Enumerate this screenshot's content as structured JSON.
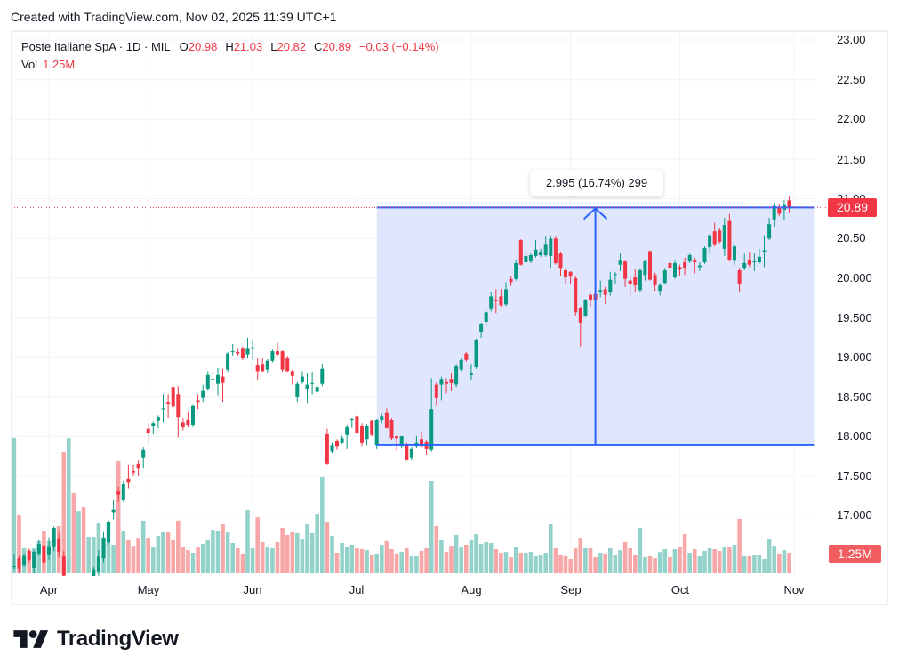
{
  "header": {
    "caption": "Created with TradingView.com, Nov 02, 2025 11:39 UTC+1"
  },
  "legend": {
    "symbol": "Poste Italiane SpA · 1D · MIL",
    "open_label": "O",
    "open": "20.98",
    "high_label": "H",
    "high": "21.03",
    "low_label": "L",
    "low": "20.82",
    "close_label": "C",
    "close": "20.89",
    "change": "−0.03 (−0.14%)",
    "vol_label": "Vol",
    "vol": "1.25M"
  },
  "price_axis": {
    "labels": [
      "23.00",
      "22.50",
      "22.00",
      "21.50",
      "21.00",
      "20.50",
      "20.000",
      "19.500",
      "19.000",
      "18.500",
      "18.000",
      "17.500",
      "17.000"
    ],
    "last_price_badge": "20.89",
    "volume_badge": "1.25M"
  },
  "time_axis": {
    "labels": [
      "Apr",
      "May",
      "Jun",
      "Jul",
      "Aug",
      "Sep",
      "Oct",
      "Nov"
    ]
  },
  "measure": {
    "label": "2.995 (16.74%) 299"
  },
  "footer": {
    "brand": "TradingView"
  },
  "colors": {
    "up": "#089981",
    "down": "#f23645",
    "vol_up": "#93d2cb",
    "vol_down": "#f7a7a7",
    "grid": "#f0f3fa",
    "range_fill": "#dfe6fd",
    "range_line": "#2962ff",
    "price_badge": "#f23645",
    "volume_badge": "#f05c5f"
  },
  "chart_data": {
    "type": "bar",
    "subtype": "candlestick",
    "title": "Poste Italiane SpA · 1D · MIL",
    "xlabel": "",
    "ylabel": "",
    "ylim": [
      16.25,
      23.1
    ],
    "grid": true,
    "legend_position": "top-left",
    "y_ticks": [
      23.0,
      22.5,
      22.0,
      21.5,
      21.0,
      20.5,
      20.0,
      19.5,
      19.0,
      18.5,
      18.0,
      17.5,
      17.0,
      16.5
    ],
    "x_ticks": [
      {
        "label": "Apr",
        "index": 0
      },
      {
        "label": "May",
        "index": 20
      },
      {
        "label": "Jun",
        "index": 41
      },
      {
        "label": "Jul",
        "index": 62
      },
      {
        "label": "Aug",
        "index": 85
      },
      {
        "label": "Sep",
        "index": 105
      },
      {
        "label": "Oct",
        "index": 127
      },
      {
        "label": "Nov",
        "index": 150
      }
    ],
    "last_price": 20.89,
    "last_volume_m": 1.25,
    "annotations": {
      "price_range": {
        "label": "2.995 (16.74%) 299",
        "price_low": 17.895,
        "price_high": 20.89,
        "from_index": 66,
        "to_index": 154,
        "arrow_index": 110
      }
    },
    "ohlcv_fields": [
      "open",
      "high",
      "low",
      "close",
      "volume_millions"
    ],
    "start_index": -7,
    "ohlcv": [
      [
        16.36,
        16.53,
        16.33,
        16.37,
        8.26
      ],
      [
        16.47,
        16.51,
        16.28,
        16.34,
        3.59
      ],
      [
        16.38,
        16.53,
        16.36,
        16.51,
        1.52
      ],
      [
        16.56,
        16.59,
        16.42,
        16.45,
        1.41
      ],
      [
        16.35,
        16.57,
        16.28,
        16.55,
        1.52
      ],
      [
        16.53,
        16.71,
        16.51,
        16.65,
        1.96
      ],
      [
        16.63,
        16.66,
        16.29,
        16.42,
        2.61
      ],
      [
        16.52,
        16.73,
        16.45,
        16.62,
        1.96
      ],
      [
        16.62,
        16.87,
        16.56,
        16.85,
        2.77
      ],
      [
        16.72,
        16.79,
        16.48,
        16.55,
        2.88
      ],
      [
        16.49,
        16.56,
        16.17,
        16.25,
        7.39
      ],
      [
        15.3,
        15.9,
        14.8,
        15.7,
        8.26
      ],
      [
        15.8,
        16.0,
        15.2,
        15.4,
        4.89
      ],
      [
        15.3,
        16.1,
        15.1,
        15.9,
        3.8
      ],
      [
        16.1,
        16.2,
        15.6,
        15.8,
        4.08
      ],
      [
        15.8,
        16.2,
        15.7,
        16.1,
        2.23
      ],
      [
        16.05,
        16.36,
        16.0,
        16.33,
        2.23
      ],
      [
        16.31,
        16.57,
        16.25,
        16.49,
        3.1
      ],
      [
        16.47,
        16.81,
        16.42,
        16.73,
        2.17
      ],
      [
        16.67,
        16.95,
        16.65,
        16.93,
        3.15
      ],
      [
        17.05,
        17.21,
        16.96,
        17.08,
        1.74
      ],
      [
        17.32,
        17.37,
        17.18,
        17.27,
        6.85
      ],
      [
        17.21,
        17.45,
        17.18,
        17.41,
        2.61
      ],
      [
        17.47,
        17.65,
        17.35,
        17.43,
        2.07
      ],
      [
        17.57,
        17.65,
        17.51,
        17.55,
        1.68
      ],
      [
        17.66,
        17.7,
        17.51,
        17.6,
        2.17
      ],
      [
        17.74,
        17.87,
        17.6,
        17.84,
        3.21
      ],
      [
        18.1,
        18.17,
        17.9,
        18.05,
        2.17
      ],
      [
        18.14,
        18.19,
        18.04,
        18.17,
        1.63
      ],
      [
        18.2,
        18.27,
        18.11,
        18.25,
        2.28
      ],
      [
        18.35,
        18.54,
        18.18,
        18.36,
        2.55
      ],
      [
        18.44,
        18.54,
        18.24,
        18.42,
        2.55
      ],
      [
        18.63,
        18.64,
        18.35,
        18.38,
        2.01
      ],
      [
        18.54,
        18.64,
        17.99,
        18.25,
        3.21
      ],
      [
        18.18,
        18.24,
        18.08,
        18.13,
        1.63
      ],
      [
        18.22,
        18.32,
        18.13,
        18.15,
        1.41
      ],
      [
        18.15,
        18.4,
        18.13,
        18.39,
        1.25
      ],
      [
        18.46,
        18.54,
        18.35,
        18.44,
        1.63
      ],
      [
        18.49,
        18.66,
        18.44,
        18.58,
        1.79
      ],
      [
        18.6,
        18.83,
        18.58,
        18.78,
        2.07
      ],
      [
        18.72,
        18.83,
        18.58,
        18.73,
        2.66
      ],
      [
        18.67,
        18.87,
        18.53,
        18.78,
        2.61
      ],
      [
        18.76,
        18.86,
        18.44,
        18.68,
        2.99
      ],
      [
        18.85,
        19.07,
        18.81,
        19.05,
        2.55
      ],
      [
        19.07,
        19.17,
        19.02,
        19.08,
        1.85
      ],
      [
        19.07,
        19.11,
        19.02,
        19.05,
        1.52
      ],
      [
        19.11,
        19.14,
        18.97,
        18.99,
        1.2
      ],
      [
        19.04,
        19.25,
        18.99,
        19.11,
        3.86
      ],
      [
        19.11,
        19.23,
        18.97,
        19.13,
        1.58
      ],
      [
        18.9,
        18.99,
        18.72,
        18.83,
        3.42
      ],
      [
        18.91,
        18.99,
        18.81,
        18.83,
        1.9
      ],
      [
        18.85,
        18.98,
        18.8,
        18.96,
        1.63
      ],
      [
        18.96,
        19.1,
        18.94,
        19.08,
        1.58
      ],
      [
        19.08,
        19.19,
        19.02,
        19.04,
        1.9
      ],
      [
        19.08,
        19.09,
        18.82,
        18.85,
        2.77
      ],
      [
        18.99,
        19.01,
        18.81,
        18.83,
        2.34
      ],
      [
        18.83,
        18.85,
        18.66,
        18.77,
        2.55
      ],
      [
        18.5,
        18.69,
        18.44,
        18.67,
        2.45
      ],
      [
        18.69,
        18.83,
        18.67,
        18.76,
        2.12
      ],
      [
        18.6,
        18.8,
        18.43,
        18.66,
        2.99
      ],
      [
        18.67,
        18.82,
        18.54,
        18.68,
        2.45
      ],
      [
        18.57,
        18.66,
        18.56,
        18.63,
        3.64
      ],
      [
        18.67,
        18.92,
        18.64,
        18.86,
        5.87
      ],
      [
        18.04,
        18.1,
        17.65,
        17.66,
        3.15
      ],
      [
        17.82,
        17.93,
        17.79,
        17.89,
        2.28
      ],
      [
        17.95,
        17.97,
        17.84,
        17.88,
        1.25
      ],
      [
        17.93,
        18.02,
        17.92,
        17.98,
        1.85
      ],
      [
        18.03,
        18.15,
        17.85,
        18.13,
        1.63
      ],
      [
        18.22,
        18.24,
        18.12,
        18.23,
        1.74
      ],
      [
        18.26,
        18.34,
        18.03,
        18.05,
        1.58
      ],
      [
        18.14,
        18.17,
        17.88,
        17.93,
        1.47
      ],
      [
        17.97,
        18.16,
        17.89,
        18.14,
        1.41
      ],
      [
        18.2,
        18.22,
        18.01,
        18.03,
        1.14
      ],
      [
        17.89,
        18.23,
        17.85,
        18.21,
        1.2
      ],
      [
        18.21,
        18.29,
        18.17,
        18.26,
        1.74
      ],
      [
        18.3,
        18.36,
        18.1,
        18.12,
        1.96
      ],
      [
        18.22,
        18.24,
        17.96,
        17.98,
        1.47
      ],
      [
        18.01,
        18.02,
        17.83,
        17.98,
        1.2
      ],
      [
        17.88,
        18.02,
        17.86,
        18.01,
        1.3
      ],
      [
        17.89,
        17.93,
        17.7,
        17.71,
        1.58
      ],
      [
        17.74,
        17.87,
        17.71,
        17.85,
        1.09
      ],
      [
        17.88,
        18.02,
        17.86,
        17.93,
        1.09
      ],
      [
        17.97,
        18.06,
        17.87,
        17.88,
        1.36
      ],
      [
        17.94,
        17.96,
        17.77,
        17.85,
        1.58
      ],
      [
        17.84,
        18.74,
        17.82,
        18.35,
        5.65
      ],
      [
        18.66,
        18.69,
        18.39,
        18.49,
        2.88
      ],
      [
        18.66,
        18.76,
        18.46,
        18.73,
        2.07
      ],
      [
        18.69,
        18.74,
        18.55,
        18.67,
        1.3
      ],
      [
        18.73,
        18.8,
        18.58,
        18.68,
        1.68
      ],
      [
        18.66,
        18.91,
        18.63,
        18.89,
        2.34
      ],
      [
        18.85,
        18.99,
        18.83,
        18.97,
        1.63
      ],
      [
        19.05,
        19.07,
        18.95,
        18.97,
        1.74
      ],
      [
        18.78,
        18.91,
        18.71,
        18.8,
        2.07
      ],
      [
        18.88,
        19.24,
        18.86,
        19.22,
        2.39
      ],
      [
        19.32,
        19.44,
        19.25,
        19.42,
        1.79
      ],
      [
        19.45,
        19.6,
        19.39,
        19.57,
        1.9
      ],
      [
        19.61,
        19.83,
        19.58,
        19.77,
        1.85
      ],
      [
        19.73,
        19.86,
        19.56,
        19.71,
        1.47
      ],
      [
        19.77,
        19.86,
        19.64,
        19.66,
        1.25
      ],
      [
        19.67,
        19.95,
        19.65,
        19.86,
        1.3
      ],
      [
        19.99,
        20.03,
        19.9,
        19.95,
        0.98
      ],
      [
        19.99,
        20.23,
        19.97,
        20.19,
        1.63
      ],
      [
        20.48,
        20.49,
        20.16,
        20.17,
        1.25
      ],
      [
        20.2,
        20.35,
        20.18,
        20.28,
        1.25
      ],
      [
        20.21,
        20.31,
        20.19,
        20.29,
        1.3
      ],
      [
        20.28,
        20.48,
        20.26,
        20.36,
        1.03
      ],
      [
        20.29,
        20.37,
        20.27,
        20.33,
        1.14
      ],
      [
        20.29,
        20.53,
        20.27,
        20.42,
        1.25
      ],
      [
        20.28,
        20.54,
        20.12,
        20.5,
        2.99
      ],
      [
        20.5,
        20.53,
        20.17,
        20.19,
        1.52
      ],
      [
        20.31,
        20.33,
        20.03,
        20.12,
        1.14
      ],
      [
        20.1,
        20.12,
        19.92,
        20.01,
        1.09
      ],
      [
        20.08,
        20.09,
        19.92,
        20.02,
        0.87
      ],
      [
        20.0,
        20.02,
        19.53,
        19.57,
        1.58
      ],
      [
        19.62,
        19.64,
        19.14,
        19.44,
        2.17
      ],
      [
        19.52,
        19.74,
        19.51,
        19.73,
        1.58
      ],
      [
        19.79,
        19.81,
        19.64,
        19.72,
        1.52
      ],
      [
        19.8,
        19.82,
        19.61,
        19.73,
        0.98
      ],
      [
        19.82,
        19.97,
        19.76,
        19.85,
        1.25
      ],
      [
        19.86,
        19.89,
        19.67,
        19.79,
        1.2
      ],
      [
        19.82,
        20.08,
        19.78,
        19.98,
        1.58
      ],
      [
        20.04,
        20.08,
        19.92,
        20.05,
        1.14
      ],
      [
        20.17,
        20.31,
        20.09,
        20.22,
        1.41
      ],
      [
        20.21,
        20.22,
        19.89,
        19.99,
        1.9
      ],
      [
        19.97,
        20.03,
        19.78,
        19.93,
        1.52
      ],
      [
        20.01,
        20.11,
        19.83,
        19.91,
        1.14
      ],
      [
        19.85,
        20.12,
        19.83,
        20.1,
        2.77
      ],
      [
        20.04,
        20.23,
        19.97,
        20.21,
        0.98
      ],
      [
        20.34,
        20.35,
        19.97,
        19.98,
        1.03
      ],
      [
        20.04,
        20.07,
        19.84,
        19.91,
        0.92
      ],
      [
        19.84,
        19.94,
        19.78,
        19.91,
        1.3
      ],
      [
        19.94,
        20.12,
        19.92,
        20.1,
        1.47
      ],
      [
        20.19,
        20.21,
        20.04,
        20.13,
        0.98
      ],
      [
        20.01,
        20.22,
        19.99,
        20.19,
        1.47
      ],
      [
        20.14,
        20.17,
        20.03,
        20.11,
        1.63
      ],
      [
        20.2,
        20.26,
        20.04,
        20.12,
        2.39
      ],
      [
        20.21,
        20.31,
        20.19,
        20.29,
        1.25
      ],
      [
        20.23,
        20.26,
        20.06,
        20.2,
        1.47
      ],
      [
        20.14,
        20.2,
        20.09,
        20.16,
        1.03
      ],
      [
        20.2,
        20.4,
        20.18,
        20.38,
        1.36
      ],
      [
        20.39,
        20.56,
        20.31,
        20.54,
        1.52
      ],
      [
        20.59,
        20.7,
        20.4,
        20.42,
        1.47
      ],
      [
        20.6,
        20.63,
        20.44,
        20.46,
        1.36
      ],
      [
        20.37,
        20.76,
        20.28,
        20.67,
        1.63
      ],
      [
        20.72,
        20.81,
        20.21,
        20.23,
        1.63
      ],
      [
        20.22,
        20.42,
        20.17,
        20.4,
        1.74
      ],
      [
        20.1,
        20.12,
        19.83,
        19.93,
        3.32
      ],
      [
        20.12,
        20.31,
        20.1,
        20.19,
        1.09
      ],
      [
        20.23,
        20.33,
        20.14,
        20.17,
        1.03
      ],
      [
        20.2,
        20.31,
        20.09,
        20.21,
        1.14
      ],
      [
        20.2,
        20.37,
        20.18,
        20.27,
        1.14
      ],
      [
        20.33,
        20.54,
        20.14,
        20.35,
        0.87
      ],
      [
        20.5,
        20.76,
        20.48,
        20.68,
        2.12
      ],
      [
        20.74,
        20.95,
        20.65,
        20.91,
        1.68
      ],
      [
        20.89,
        20.94,
        20.78,
        20.81,
        1.2
      ],
      [
        20.86,
        20.98,
        20.73,
        20.92,
        1.41
      ],
      [
        20.98,
        21.03,
        20.82,
        20.89,
        1.25
      ]
    ]
  }
}
